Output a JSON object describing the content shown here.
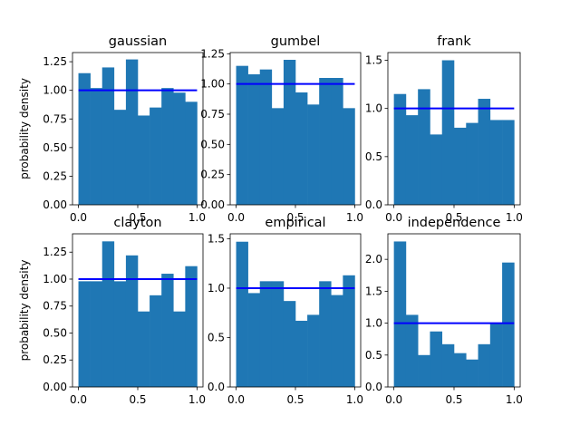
{
  "figure": {
    "ylabel_shared": "probability density",
    "colors": {
      "bar": "#1f77b4",
      "reference_line": "#0000ff",
      "axes": "#000000",
      "background": "#ffffff"
    }
  },
  "chart_data": [
    {
      "type": "bar",
      "title": "gaussian",
      "xlabel": "",
      "ylabel": "probability density",
      "bin_edges": [
        0.0,
        0.1,
        0.2,
        0.3,
        0.4,
        0.5,
        0.6,
        0.7,
        0.8,
        0.9,
        1.0
      ],
      "values": [
        1.15,
        1.02,
        1.2,
        0.83,
        1.27,
        0.78,
        0.85,
        1.02,
        0.98,
        0.9
      ],
      "reference_line": 1.0,
      "xlim": [
        -0.05,
        1.05
      ],
      "ylim": [
        0,
        1.33
      ],
      "xticks": [
        0.0,
        0.5,
        1.0
      ],
      "xtick_labels": [
        "0.0",
        "0.5",
        "1.0"
      ],
      "yticks": [
        0,
        0.25,
        0.5,
        0.75,
        1.0,
        1.25
      ],
      "ytick_labels": [
        "0.00",
        "0.25",
        "0.50",
        "0.75",
        "1.00",
        "1.25"
      ],
      "grid": false
    },
    {
      "type": "bar",
      "title": "gumbel",
      "xlabel": "",
      "ylabel": "",
      "bin_edges": [
        0.0,
        0.1,
        0.2,
        0.3,
        0.4,
        0.5,
        0.6,
        0.7,
        0.8,
        0.9,
        1.0
      ],
      "values": [
        1.15,
        1.08,
        1.12,
        0.8,
        1.2,
        0.93,
        0.83,
        1.05,
        1.05,
        0.8
      ],
      "reference_line": 1.0,
      "xlim": [
        -0.05,
        1.05
      ],
      "ylim": [
        0,
        1.26
      ],
      "xticks": [
        0.0,
        0.5,
        1.0
      ],
      "xtick_labels": [
        "0.0",
        "0.5",
        "1.0"
      ],
      "yticks": [
        0,
        0.25,
        0.5,
        0.75,
        1.0,
        1.25
      ],
      "ytick_labels": [
        "0.00",
        "0.25",
        "0.50",
        "0.75",
        "1.00",
        "1.25"
      ],
      "grid": false
    },
    {
      "type": "bar",
      "title": "frank",
      "xlabel": "",
      "ylabel": "",
      "bin_edges": [
        0.0,
        0.1,
        0.2,
        0.3,
        0.4,
        0.5,
        0.6,
        0.7,
        0.8,
        0.9,
        1.0
      ],
      "values": [
        1.15,
        0.93,
        1.2,
        0.73,
        1.5,
        0.8,
        0.85,
        1.1,
        0.88,
        0.88
      ],
      "reference_line": 1.0,
      "xlim": [
        -0.05,
        1.05
      ],
      "ylim": [
        0,
        1.58
      ],
      "xticks": [
        0.0,
        0.5,
        1.0
      ],
      "xtick_labels": [
        "0.0",
        "0.5",
        "1.0"
      ],
      "yticks": [
        0,
        0.5,
        1.0,
        1.5
      ],
      "ytick_labels": [
        "0.0",
        "0.5",
        "1.0",
        "1.5"
      ],
      "grid": false
    },
    {
      "type": "bar",
      "title": "clayton",
      "xlabel": "",
      "ylabel": "probability density",
      "bin_edges": [
        0.0,
        0.1,
        0.2,
        0.3,
        0.4,
        0.5,
        0.6,
        0.7,
        0.8,
        0.9,
        1.0
      ],
      "values": [
        0.98,
        0.98,
        1.35,
        0.98,
        1.22,
        0.7,
        0.85,
        1.05,
        0.7,
        1.12
      ],
      "reference_line": 1.0,
      "xlim": [
        -0.05,
        1.05
      ],
      "ylim": [
        0,
        1.42
      ],
      "xticks": [
        0.0,
        0.5,
        1.0
      ],
      "xtick_labels": [
        "0.0",
        "0.5",
        "1.0"
      ],
      "yticks": [
        0,
        0.25,
        0.5,
        0.75,
        1.0,
        1.25
      ],
      "ytick_labels": [
        "0.00",
        "0.25",
        "0.50",
        "0.75",
        "1.00",
        "1.25"
      ],
      "grid": false
    },
    {
      "type": "bar",
      "title": "empirical",
      "xlabel": "",
      "ylabel": "",
      "bin_edges": [
        0.0,
        0.1,
        0.2,
        0.3,
        0.4,
        0.5,
        0.6,
        0.7,
        0.8,
        0.9,
        1.0
      ],
      "values": [
        1.47,
        0.95,
        1.07,
        1.07,
        0.87,
        0.67,
        0.73,
        1.07,
        0.93,
        1.13
      ],
      "reference_line": 1.0,
      "xlim": [
        -0.05,
        1.05
      ],
      "ylim": [
        0,
        1.55
      ],
      "xticks": [
        0.0,
        0.5,
        1.0
      ],
      "xtick_labels": [
        "0.0",
        "0.5",
        "1.0"
      ],
      "yticks": [
        0,
        0.5,
        1.0,
        1.5
      ],
      "ytick_labels": [
        "0.0",
        "0.5",
        "1.0",
        "1.5"
      ],
      "grid": false
    },
    {
      "type": "bar",
      "title": "independence",
      "xlabel": "",
      "ylabel": "",
      "bin_edges": [
        0.0,
        0.1,
        0.2,
        0.3,
        0.4,
        0.5,
        0.6,
        0.7,
        0.8,
        0.9,
        1.0
      ],
      "values": [
        2.28,
        1.13,
        0.5,
        0.87,
        0.67,
        0.53,
        0.43,
        0.67,
        1.0,
        1.95
      ],
      "reference_line": 1.0,
      "xlim": [
        -0.05,
        1.05
      ],
      "ylim": [
        0,
        2.4
      ],
      "xticks": [
        0.0,
        0.5,
        1.0
      ],
      "xtick_labels": [
        "0.0",
        "0.5",
        "1.0"
      ],
      "yticks": [
        0,
        0.5,
        1.0,
        1.5,
        2.0
      ],
      "ytick_labels": [
        "0.0",
        "0.5",
        "1.0",
        "1.5",
        "2.0"
      ],
      "grid": false
    }
  ]
}
